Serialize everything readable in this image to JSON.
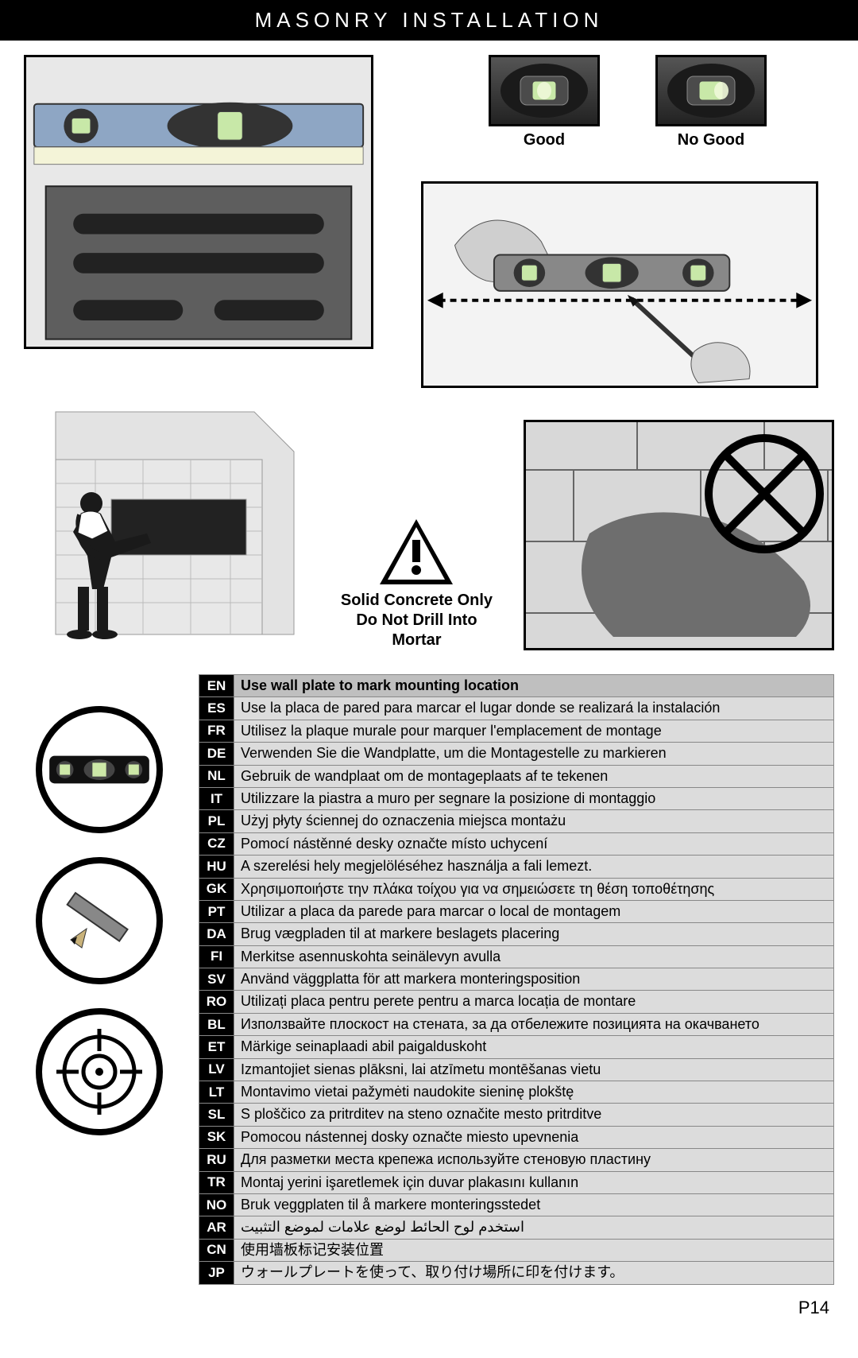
{
  "header": {
    "title": "MASONRY INSTALLATION"
  },
  "bubbles": {
    "good": "Good",
    "nogood": "No Good"
  },
  "warning": {
    "line1": "Solid Concrete Only",
    "line2": "Do Not Drill Into Mortar"
  },
  "page_number": "P14",
  "lang_table": {
    "header_code": "EN",
    "header_text": "Use wall plate to mark mounting location",
    "rows": [
      {
        "code": "ES",
        "text": "Use la placa de pared para marcar el lugar donde se realizará la instalación"
      },
      {
        "code": "FR",
        "text": "Utilisez la plaque murale pour marquer l'emplacement de montage"
      },
      {
        "code": "DE",
        "text": "Verwenden Sie die Wandplatte, um die Montagestelle zu markieren"
      },
      {
        "code": "NL",
        "text": "Gebruik de wandplaat om de montageplaats af te tekenen"
      },
      {
        "code": "IT",
        "text": "Utilizzare la piastra a muro per segnare la posizione di montaggio"
      },
      {
        "code": "PL",
        "text": "Użyj płyty ściennej do oznaczenia miejsca montażu"
      },
      {
        "code": "CZ",
        "text": "Pomocí nástěnné desky označte místo uchycení"
      },
      {
        "code": "HU",
        "text": "A szerelési hely megjelöléséhez használja a fali lemezt."
      },
      {
        "code": "GK",
        "text": "Χρησιμοποιήστε την πλάκα τοίχου για να σημειώσετε τη θέση τοποθέτησης"
      },
      {
        "code": "PT",
        "text": "Utilizar a placa da parede para marcar o local de montagem"
      },
      {
        "code": "DA",
        "text": "Brug vægpladen til at markere beslagets placering"
      },
      {
        "code": "FI",
        "text": "Merkitse asennuskohta seinälevyn avulla"
      },
      {
        "code": "SV",
        "text": "Använd väggplatta för att markera monteringsposition"
      },
      {
        "code": "RO",
        "text": "Utilizați placa pentru perete pentru a marca locația de montare"
      },
      {
        "code": "BL",
        "text": "Използвайте плоскост на стената, за да отбележите позицията на окачването"
      },
      {
        "code": "ET",
        "text": "Märkige seinaplaadi abil paigalduskoht"
      },
      {
        "code": "LV",
        "text": "Izmantojiet sienas plāksni, lai atzīmetu montēšanas vietu"
      },
      {
        "code": "LT",
        "text": "Montavimo vietai pažymėti naudokite sieninę plokštę"
      },
      {
        "code": "SL",
        "text": "S ploščico za pritrditev na steno označite mesto pritrditve"
      },
      {
        "code": "SK",
        "text": "Pomocou nástennej dosky označte miesto upevnenia"
      },
      {
        "code": "RU",
        "text": "Для разметки места крепежа используйте стеновую пластину"
      },
      {
        "code": "TR",
        "text": "Montaj yerini işaretlemek için duvar plakasını kullanın"
      },
      {
        "code": "NO",
        "text": "Bruk veggplaten til å markere monteringsstedet"
      },
      {
        "code": "AR",
        "text": "استخدم لوح الحائط لوضع علامات لموضع التثبيت"
      },
      {
        "code": "CN",
        "text": "使用墙板标记安装位置"
      },
      {
        "code": "JP",
        "text": "ウォールプレートを使って、取り付け場所に印を付けます。"
      }
    ]
  },
  "colors": {
    "header_bg": "#000000",
    "header_fg": "#ffffff",
    "row_bg": "#dcdcdc",
    "hdr_row_bg": "#bfbfbf"
  }
}
